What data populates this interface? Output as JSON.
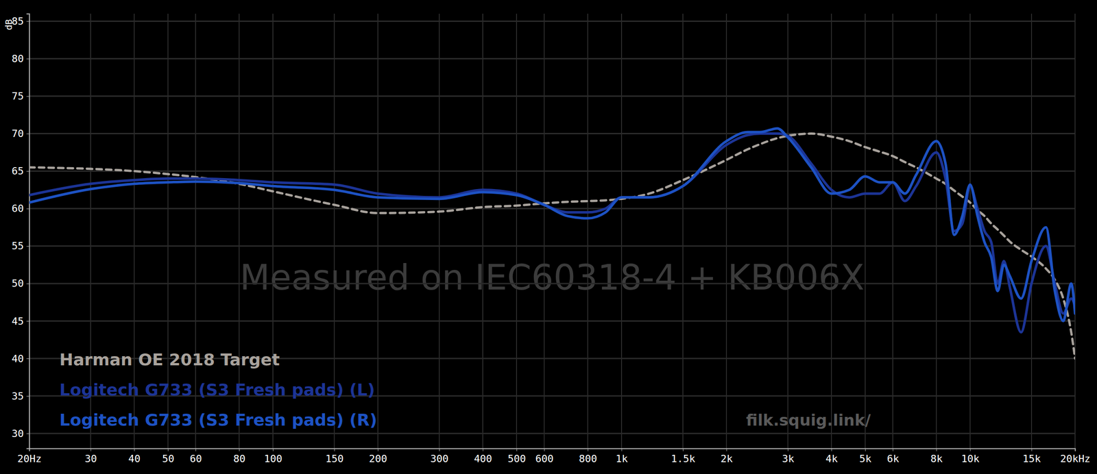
{
  "chart_data": {
    "type": "line",
    "ylabel": "dB",
    "annotations": [
      "Measured on IEC60318-4 + KB006X",
      "filk.squig.link/"
    ],
    "log": "x",
    "grid": true,
    "legend": "lower left",
    "xlim": [
      20,
      20000
    ],
    "ylim": [
      28,
      86
    ],
    "xticks": [
      {
        "value": 20,
        "label": "20Hz"
      },
      30,
      40,
      50,
      60,
      80,
      100,
      150,
      200,
      300,
      400,
      500,
      600,
      800,
      {
        "value": 1000,
        "label": "1k"
      },
      {
        "value": 1500,
        "label": "1.5k"
      },
      {
        "value": 2000,
        "label": "2k"
      },
      {
        "value": 3000,
        "label": "3k"
      },
      {
        "value": 4000,
        "label": "4k"
      },
      {
        "value": 5000,
        "label": "5k"
      },
      {
        "value": 6000,
        "label": "6k"
      },
      {
        "value": 8000,
        "label": "8k"
      },
      {
        "value": 10000,
        "label": "10k"
      },
      {
        "value": 15000,
        "label": "15k"
      },
      {
        "value": 20000,
        "label": "20kHz"
      }
    ],
    "yticks": [
      30,
      35,
      40,
      45,
      50,
      55,
      60,
      65,
      70,
      75,
      80,
      85
    ],
    "x": [
      20,
      30,
      40,
      50,
      60,
      80,
      100,
      150,
      200,
      300,
      400,
      500,
      600,
      700,
      800,
      900,
      1000,
      1200,
      1500,
      2000,
      2300,
      2500,
      2800,
      3000,
      3500,
      4000,
      4500,
      5000,
      5500,
      6000,
      6500,
      7000,
      8000,
      8500,
      9000,
      9500,
      10000,
      10500,
      11000,
      11500,
      12000,
      12500,
      13000,
      14000,
      15000,
      16500,
      17500,
      18500,
      19500,
      20000
    ],
    "series": [
      {
        "name": "Harman OE 2018 Target",
        "color": "#a8a29c",
        "line_style": "dashed",
        "values": [
          65.5,
          65.3,
          65.0,
          64.6,
          64.2,
          63.3,
          62.3,
          60.5,
          59.4,
          59.6,
          60.2,
          60.4,
          60.7,
          60.9,
          61.0,
          61.1,
          61.3,
          62.0,
          63.8,
          66.5,
          67.9,
          68.6,
          69.4,
          69.7,
          70.0,
          69.6,
          69.0,
          68.2,
          67.6,
          67.0,
          66.2,
          65.5,
          64.0,
          63.3,
          62.4,
          61.6,
          60.8,
          59.8,
          59.0,
          58.0,
          57.2,
          56.4,
          55.6,
          54.5,
          53.6,
          52.0,
          50.5,
          48.0,
          43.5,
          40.0
        ]
      },
      {
        "name": "Logitech G733 (S3 Fresh pads) (L)",
        "color": "#1c3496",
        "line_style": "solid",
        "values": [
          61.8,
          63.3,
          63.8,
          64.0,
          64.0,
          63.8,
          63.5,
          63.2,
          62.0,
          61.5,
          62.5,
          62.0,
          60.5,
          59.5,
          59.5,
          60.0,
          61.5,
          61.5,
          63.0,
          68.5,
          69.8,
          70.0,
          70.0,
          69.7,
          66.0,
          62.5,
          61.5,
          62.0,
          62.0,
          63.5,
          61.0,
          63.0,
          67.5,
          64.0,
          57.0,
          58.0,
          63.0,
          60.0,
          57.0,
          55.5,
          50.0,
          53.0,
          49.5,
          43.5,
          50.0,
          55.0,
          50.0,
          46.0,
          48.0,
          47.0
        ]
      },
      {
        "name": "Logitech G733 (S3 Fresh pads) (R)",
        "color": "#1d52c4",
        "line_style": "solid",
        "values": [
          60.8,
          62.6,
          63.3,
          63.5,
          63.6,
          63.4,
          63.0,
          62.5,
          61.5,
          61.3,
          62.2,
          61.8,
          60.5,
          59.0,
          58.7,
          59.5,
          61.5,
          61.5,
          63.0,
          69.0,
          70.2,
          70.2,
          70.7,
          69.5,
          65.5,
          62.0,
          62.5,
          64.3,
          63.5,
          63.5,
          62.0,
          64.5,
          69.0,
          66.0,
          56.5,
          59.0,
          63.2,
          59.0,
          55.5,
          53.5,
          49.0,
          52.5,
          51.0,
          48.0,
          53.0,
          57.5,
          49.0,
          45.0,
          50.0,
          46.0
        ]
      }
    ]
  }
}
